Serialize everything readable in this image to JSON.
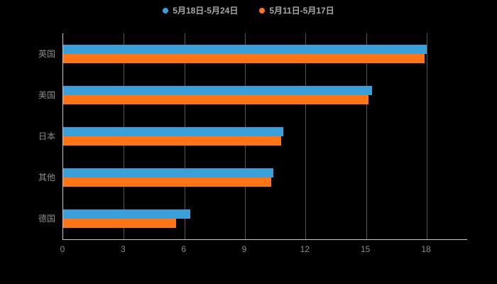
{
  "chart_data": {
    "type": "bar",
    "orientation": "horizontal",
    "title": "",
    "xlabel": "",
    "ylabel": "",
    "categories": [
      "英国",
      "美国",
      "日本",
      "其他",
      "德国"
    ],
    "series": [
      {
        "name": "5月18日-5月24日",
        "color": "#3BA0DA",
        "values": [
          18,
          15.3,
          10.9,
          10.4,
          6.3
        ]
      },
      {
        "name": "5月11日-5月17日",
        "color": "#FF7417",
        "values": [
          17.9,
          15.1,
          10.8,
          10.3,
          5.6
        ]
      }
    ],
    "xlim": [
      0,
      18
    ],
    "xticks": [
      0,
      3,
      6,
      9,
      12,
      15,
      18
    ],
    "grid": true,
    "legend_position": "top",
    "background_color": "#000000",
    "axis_color": "#c9c9c9",
    "grid_color": "#555555",
    "label_color": "#8c8c8c"
  }
}
